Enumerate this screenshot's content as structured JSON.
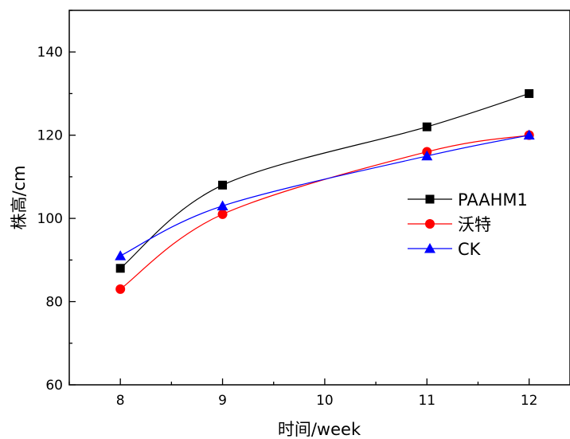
{
  "chart_data": {
    "type": "line",
    "xlabel": "时间/week",
    "ylabel": "株高/cm",
    "xlim": [
      7.5,
      12.4
    ],
    "ylim": [
      60,
      150
    ],
    "x_ticks": [
      8,
      9,
      10,
      11,
      12
    ],
    "y_ticks": [
      60,
      80,
      100,
      120,
      140
    ],
    "grid": false,
    "legend_position": "right",
    "series": [
      {
        "name": "PAAHM1",
        "marker": "square",
        "color": "#000000",
        "x": [
          8,
          9,
          11,
          12
        ],
        "values": [
          88,
          108,
          122,
          130
        ]
      },
      {
        "name": "沃特",
        "marker": "circle",
        "color": "#ff0000",
        "x": [
          8,
          9,
          11,
          12
        ],
        "values": [
          83,
          101,
          116,
          120
        ]
      },
      {
        "name": "CK",
        "marker": "triangle",
        "color": "#0000ff",
        "x": [
          8,
          9,
          11,
          12
        ],
        "values": [
          91,
          103,
          115,
          120
        ]
      }
    ]
  }
}
